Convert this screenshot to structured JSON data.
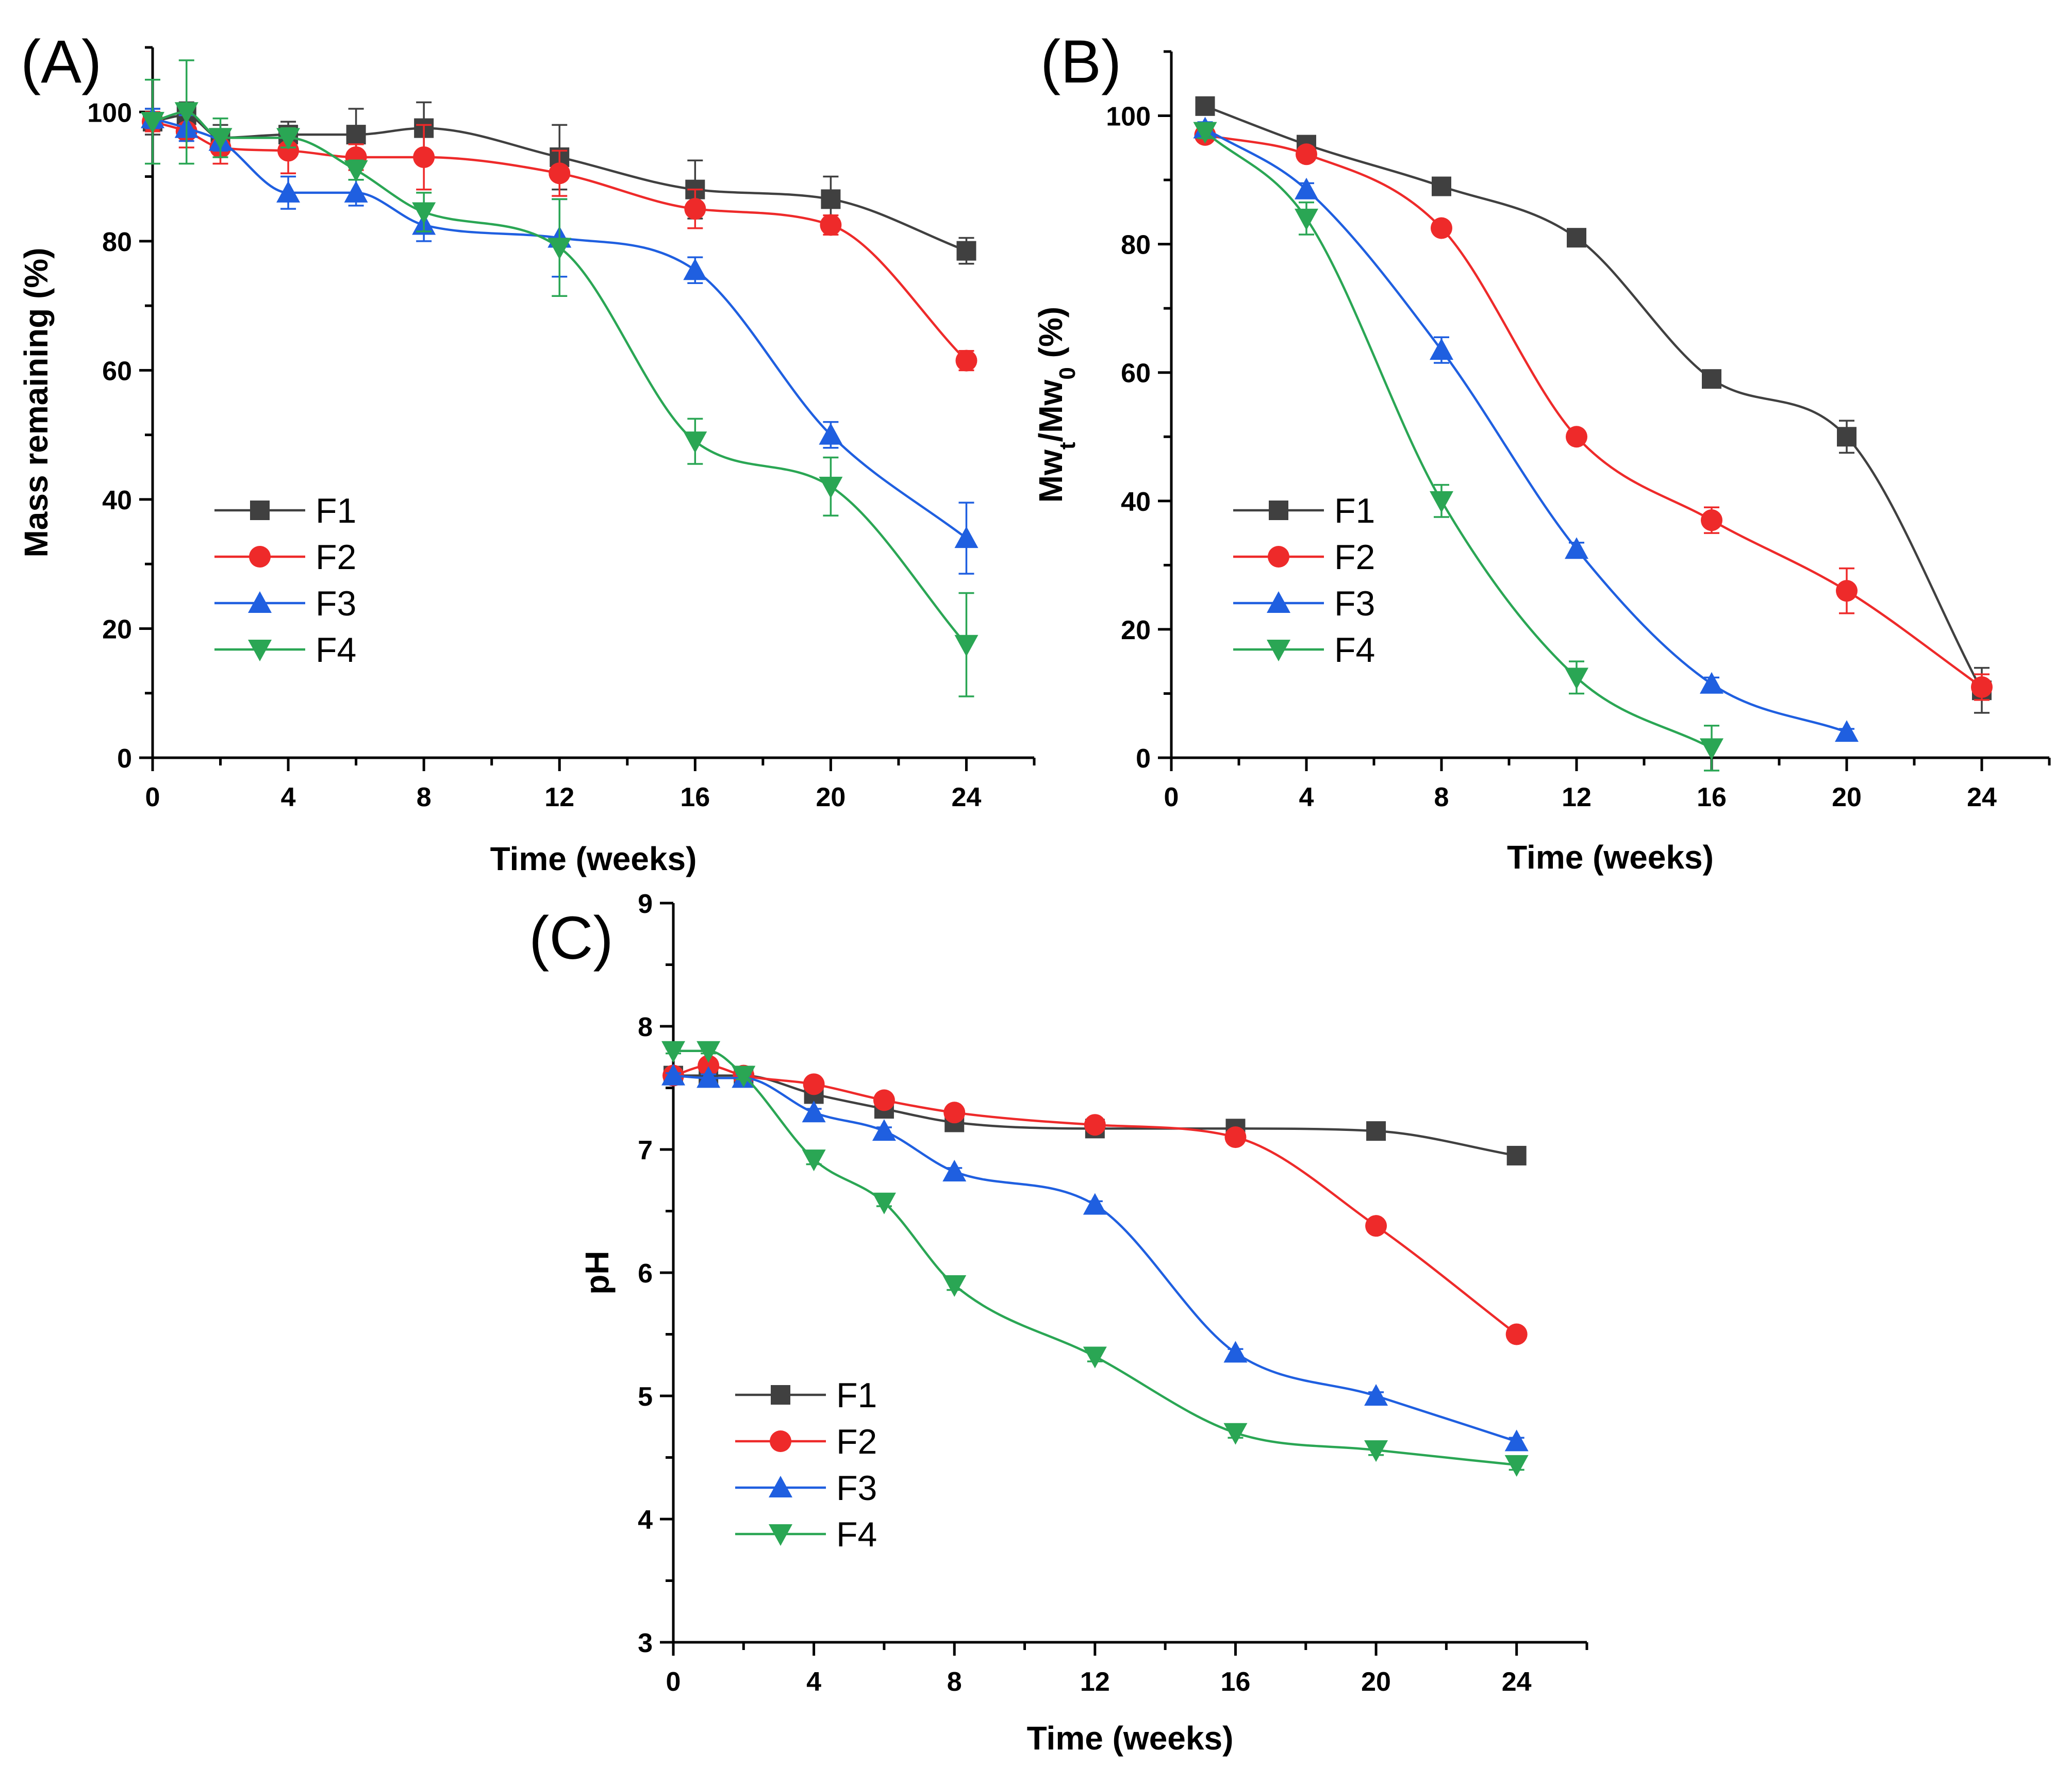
{
  "chart_data": [
    {
      "type": "line",
      "panel_label": "(A)",
      "xlabel": "Time (weeks)",
      "ylabel": "Mass remaining (%)",
      "xlim": [
        0,
        26
      ],
      "ylim": [
        0,
        110
      ],
      "xticks": [
        0,
        4,
        8,
        12,
        16,
        20,
        24
      ],
      "yticks": [
        0,
        20,
        40,
        60,
        80,
        100
      ],
      "legend_position": "bottom-left",
      "series": [
        {
          "name": "F1",
          "color": "#404040",
          "marker": "square",
          "x": [
            0,
            1,
            2,
            4,
            6,
            8,
            12,
            16,
            20,
            24
          ],
          "y": [
            98.5,
            99.5,
            96.0,
            96.5,
            96.5,
            97.5,
            93.0,
            88.0,
            86.5,
            78.5
          ],
          "err": [
            2.0,
            2.0,
            2.0,
            2.0,
            4.0,
            4.0,
            5.0,
            4.5,
            3.5,
            2.0
          ]
        },
        {
          "name": "F2",
          "color": "#ee2a2a",
          "marker": "circle",
          "x": [
            0,
            1,
            2,
            4,
            6,
            8,
            12,
            16,
            20,
            24
          ],
          "y": [
            98.5,
            97.0,
            94.5,
            94.0,
            93.0,
            93.0,
            90.5,
            85.0,
            82.5,
            61.5
          ],
          "err": [
            1.5,
            2.5,
            2.5,
            3.5,
            2.0,
            5.0,
            3.5,
            3.0,
            1.5,
            1.5
          ]
        },
        {
          "name": "F3",
          "color": "#1f5fe0",
          "marker": "triangle-up",
          "x": [
            0,
            1,
            2,
            4,
            6,
            8,
            12,
            16,
            20,
            24
          ],
          "y": [
            99.0,
            97.5,
            95.5,
            87.5,
            87.5,
            82.5,
            80.5,
            75.5,
            50.0,
            34.0
          ],
          "err": [
            1.5,
            2.0,
            1.5,
            2.5,
            2.0,
            2.5,
            6.0,
            2.0,
            2.0,
            5.5
          ]
        },
        {
          "name": "F4",
          "color": "#2aa654",
          "marker": "triangle-down",
          "x": [
            0,
            1,
            2,
            4,
            6,
            8,
            12,
            16,
            20,
            24
          ],
          "y": [
            98.5,
            100.0,
            96.0,
            96.0,
            91.0,
            84.5,
            79.0,
            49.0,
            42.0,
            17.5
          ],
          "err": [
            6.5,
            8.0,
            3.0,
            1.5,
            1.5,
            3.0,
            7.5,
            3.5,
            4.5,
            8.0
          ]
        }
      ]
    },
    {
      "type": "line",
      "panel_label": "(B)",
      "xlabel": "Time (weeks)",
      "ylabel": "Mwt/Mw0 (%)",
      "ylabel_parts": {
        "a": "Mw",
        "a_sub": "t",
        "b": "/Mw",
        "b_sub": "0",
        "c": " (%)"
      },
      "xlim": [
        0,
        26
      ],
      "ylim": [
        0,
        110
      ],
      "xticks": [
        0,
        4,
        8,
        12,
        16,
        20,
        24
      ],
      "yticks": [
        0,
        20,
        40,
        60,
        80,
        100
      ],
      "legend_position": "bottom-left",
      "series": [
        {
          "name": "F1",
          "color": "#404040",
          "marker": "square",
          "x": [
            1,
            4,
            8,
            12,
            16,
            20,
            24
          ],
          "y": [
            101.5,
            95.5,
            89.0,
            81.0,
            59.0,
            50.0,
            10.5
          ],
          "err": [
            0.5,
            1.0,
            1.0,
            1.0,
            1.0,
            2.5,
            3.5
          ]
        },
        {
          "name": "F2",
          "color": "#ee2a2a",
          "marker": "circle",
          "x": [
            1,
            4,
            8,
            12,
            16,
            20,
            24
          ],
          "y": [
            97.0,
            94.0,
            82.5,
            50.0,
            37.0,
            26.0,
            11.0
          ],
          "err": [
            0.5,
            1.0,
            1.0,
            1.0,
            2.0,
            3.5,
            2.0
          ]
        },
        {
          "name": "F3",
          "color": "#1f5fe0",
          "marker": "triangle-up",
          "x": [
            1,
            4,
            8,
            12,
            16,
            20
          ],
          "y": [
            98.0,
            88.5,
            63.5,
            32.5,
            11.5,
            4.0
          ],
          "err": [
            1.0,
            1.0,
            2.0,
            1.0,
            1.0,
            0.5
          ]
        },
        {
          "name": "F4",
          "color": "#2aa654",
          "marker": "triangle-down",
          "x": [
            1,
            4,
            8,
            12,
            16
          ],
          "y": [
            97.5,
            84.0,
            40.0,
            12.5,
            1.5
          ],
          "err": [
            1.0,
            2.5,
            2.5,
            2.5,
            3.5
          ]
        }
      ]
    },
    {
      "type": "line",
      "panel_label": "(C)",
      "xlabel": "Time (weeks)",
      "ylabel": "pH",
      "xlim": [
        0,
        26
      ],
      "ylim": [
        3,
        9
      ],
      "xticks": [
        0,
        4,
        8,
        12,
        16,
        20,
        24
      ],
      "yticks": [
        3,
        4,
        5,
        6,
        7,
        8,
        9
      ],
      "legend_position": "bottom-left",
      "series": [
        {
          "name": "F1",
          "color": "#404040",
          "marker": "square",
          "x": [
            0,
            1,
            2,
            4,
            6,
            8,
            12,
            16,
            20,
            24
          ],
          "y": [
            7.6,
            7.6,
            7.6,
            7.45,
            7.33,
            7.22,
            7.17,
            7.17,
            7.15,
            6.95
          ],
          "err": [
            0.02,
            0.02,
            0.02,
            0.03,
            0.03,
            0.03,
            0.03,
            0.03,
            0.03,
            0.03
          ]
        },
        {
          "name": "F2",
          "color": "#ee2a2a",
          "marker": "circle",
          "x": [
            0,
            1,
            2,
            4,
            6,
            8,
            12,
            16,
            20,
            24
          ],
          "y": [
            7.6,
            7.68,
            7.6,
            7.53,
            7.4,
            7.3,
            7.2,
            7.1,
            6.38,
            5.5
          ],
          "err": [
            0.02,
            0.03,
            0.03,
            0.03,
            0.03,
            0.03,
            0.03,
            0.03,
            0.04,
            0.04
          ]
        },
        {
          "name": "F3",
          "color": "#1f5fe0",
          "marker": "triangle-up",
          "x": [
            0,
            1,
            2,
            4,
            6,
            8,
            12,
            16,
            20,
            24
          ],
          "y": [
            7.6,
            7.58,
            7.58,
            7.3,
            7.15,
            6.82,
            6.55,
            5.35,
            5.0,
            4.63
          ],
          "err": [
            0.02,
            0.03,
            0.03,
            0.03,
            0.03,
            0.03,
            0.03,
            0.03,
            0.03,
            0.03
          ]
        },
        {
          "name": "F4",
          "color": "#2aa654",
          "marker": "triangle-down",
          "x": [
            0,
            1,
            2,
            4,
            6,
            8,
            12,
            16,
            20,
            24
          ],
          "y": [
            7.8,
            7.8,
            7.6,
            6.92,
            6.57,
            5.9,
            5.32,
            4.7,
            4.56,
            4.44
          ],
          "err": [
            0.02,
            0.02,
            0.03,
            0.04,
            0.03,
            0.04,
            0.04,
            0.04,
            0.04,
            0.04
          ]
        }
      ]
    }
  ]
}
